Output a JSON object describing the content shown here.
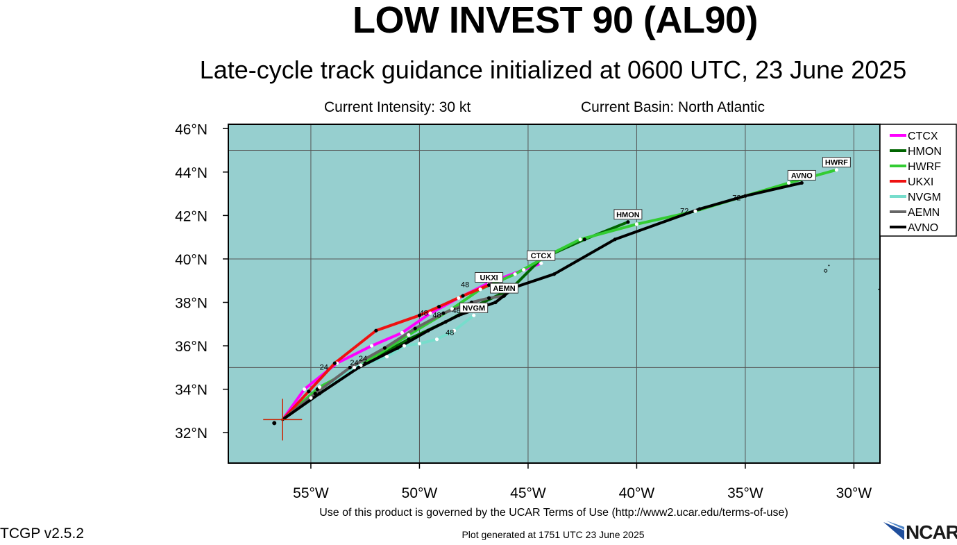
{
  "header": {
    "title": "LOW INVEST 90 (AL90)",
    "subtitle": "Late-cycle track guidance initialized at 0600 UTC, 23 June 2025",
    "intensity": "Current Intensity: 30 kt",
    "basin": "Current Basin: North Atlantic"
  },
  "footer": {
    "terms": "Use of this product is governed by the UCAR Terms of Use (http://www2.ucar.edu/terms-of-use)",
    "generated": "Plot generated at 1751 UTC   23 June 2025",
    "version": "TCGP v2.5.2",
    "logo_text": "NCAR"
  },
  "colors": {
    "ocean": "#96cfcf",
    "grid": "#555555",
    "current_position_marker": "#cc2200"
  },
  "chart_data": {
    "type": "line",
    "title": "LOW INVEST 90 (AL90)",
    "subtitle": "Late-cycle track guidance initialized at 0600 UTC, 23 June 2025",
    "xlabel": "",
    "ylabel": "",
    "xlim": [
      -58.8,
      -28.8
    ],
    "ylim": [
      30.6,
      46.2
    ],
    "grid": true,
    "legend_position": "right",
    "x_ticks": [
      {
        "value": -55,
        "label": "55°W"
      },
      {
        "value": -50,
        "label": "50°W"
      },
      {
        "value": -45,
        "label": "45°W"
      },
      {
        "value": -40,
        "label": "40°W"
      },
      {
        "value": -35,
        "label": "35°W"
      },
      {
        "value": -30,
        "label": "30°W"
      }
    ],
    "y_ticks": [
      {
        "value": 32,
        "label": "32°N"
      },
      {
        "value": 34,
        "label": "34°N"
      },
      {
        "value": 36,
        "label": "36°N"
      },
      {
        "value": 38,
        "label": "38°N"
      },
      {
        "value": 40,
        "label": "40°N"
      },
      {
        "value": 42,
        "label": "42°N"
      },
      {
        "value": 44,
        "label": "44°N"
      },
      {
        "value": 46,
        "label": "46°N"
      }
    ],
    "current_position": {
      "x": -56.3,
      "y": 32.6
    },
    "series": [
      {
        "name": "CTCX",
        "color": "#ff00ff",
        "x": [
          -56.3,
          -55.3,
          -53.8,
          -52.2,
          -50.8,
          -49.5,
          -48.2,
          -46.8,
          -45.2,
          -44.4
        ],
        "y": [
          32.6,
          34.0,
          35.2,
          36.0,
          36.6,
          37.5,
          38.2,
          38.9,
          39.5,
          39.8
        ],
        "end_label": "CTCX",
        "hour_labels": []
      },
      {
        "name": "HMON",
        "color": "#006400",
        "x": [
          -56.3,
          -54.7,
          -52.5,
          -50.5,
          -48.8,
          -47.5,
          -45.8,
          -44.4,
          -42.4,
          -40.4
        ],
        "y": [
          32.6,
          34.0,
          35.2,
          36.3,
          37.1,
          37.8,
          38.6,
          40.0,
          40.9,
          41.7
        ],
        "end_label": "HMON",
        "hour_labels": []
      },
      {
        "name": "HWRF",
        "color": "#33cc33",
        "x": [
          -56.3,
          -54.6,
          -52.7,
          -50.5,
          -48.5,
          -47.2,
          -45.6,
          -44.0,
          -42.6,
          -40.0,
          -37.3,
          -35.0,
          -33.0,
          -30.8
        ],
        "y": [
          32.6,
          34.1,
          35.1,
          36.5,
          37.7,
          38.6,
          39.3,
          40.2,
          40.9,
          41.6,
          42.2,
          42.9,
          43.5,
          44.1
        ],
        "end_label": "HWRF",
        "hour_labels": [
          {
            "text": "24",
            "x": -53.0,
            "y": 35.1
          },
          {
            "text": "48",
            "x": -47.9,
            "y": 38.7
          }
        ]
      },
      {
        "name": "UKXI",
        "color": "#ee1111",
        "x": [
          -56.3,
          -55.1,
          -53.9,
          -52.0,
          -50.0,
          -49.1,
          -48.0,
          -46.8
        ],
        "y": [
          32.6,
          33.9,
          35.2,
          36.7,
          37.4,
          37.8,
          38.3,
          38.8
        ],
        "end_label": "UKXI",
        "hour_labels": [
          {
            "text": "24",
            "x": -54.4,
            "y": 34.9
          },
          {
            "text": "48",
            "x": -49.8,
            "y": 37.4
          }
        ]
      },
      {
        "name": "NVGM",
        "color": "#77ddcc",
        "x": [
          -56.3,
          -55.0,
          -53.0,
          -51.5,
          -50.7,
          -50.0,
          -49.2,
          -48.4,
          -47.5
        ],
        "y": [
          32.6,
          33.6,
          35.0,
          35.5,
          36.0,
          36.1,
          36.3,
          36.7,
          37.4
        ],
        "end_label": "NVGM",
        "hour_labels": [
          {
            "text": "48",
            "x": -48.6,
            "y": 36.5
          }
        ]
      },
      {
        "name": "AEMN",
        "color": "#666666",
        "x": [
          -56.3,
          -54.8,
          -53.2,
          -51.6,
          -50.2,
          -48.9,
          -47.6,
          -46.8,
          -46.1
        ],
        "y": [
          32.6,
          33.8,
          35.0,
          35.9,
          36.8,
          37.5,
          38.0,
          38.2,
          38.3
        ],
        "end_label": "AEMN",
        "hour_labels": [
          {
            "text": "48",
            "x": -49.2,
            "y": 37.3
          },
          {
            "text": "48",
            "x": -48.3,
            "y": 37.5
          },
          {
            "text": "48",
            "x": -47.5,
            "y": 37.7
          }
        ]
      },
      {
        "name": "AVNO",
        "color": "#000000",
        "x": [
          -56.3,
          -54.6,
          -52.8,
          -51.0,
          -49.6,
          -48.2,
          -46.5,
          -45.6,
          -43.8,
          -41.0,
          -37.1,
          -35.0,
          -32.4
        ],
        "y": [
          32.6,
          33.8,
          35.0,
          35.9,
          36.7,
          37.4,
          38.0,
          38.7,
          39.3,
          40.9,
          42.3,
          42.9,
          43.5
        ],
        "end_label": "AVNO",
        "hour_labels": [
          {
            "text": "24",
            "x": -52.6,
            "y": 35.3
          },
          {
            "text": "72",
            "x": -37.8,
            "y": 42.1
          },
          {
            "text": "72",
            "x": -35.4,
            "y": 42.7
          }
        ]
      }
    ]
  }
}
